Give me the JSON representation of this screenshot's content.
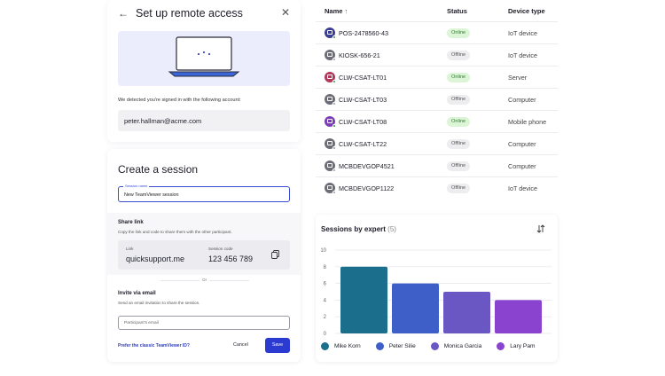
{
  "remote_access": {
    "title": "Set up remote access",
    "back_icon": "arrow-left-icon",
    "close_icon": "close-icon",
    "illustration": "laptop-illustration",
    "description": "We detected you're signed in with the following account:",
    "account": "peter.hallman@acme.com"
  },
  "session": {
    "title": "Create a session",
    "name_label": "Session name",
    "name_value": "New TeamViewer session",
    "share_heading": "Share link",
    "share_desc": "Copy the link and code to share them with the other participant.",
    "link_label": "Link",
    "link_value": "quicksupport.me",
    "code_label": "Session code",
    "code_value": "123 456 789",
    "or_text": "Or",
    "invite_heading": "Invite via email",
    "invite_desc": "Send an email invitation to share the session.",
    "email_placeholder": "Participant's email",
    "classic_link": "Prefer the classic TeamViewer ID?",
    "cancel_label": "Cancel",
    "save_label": "Save"
  },
  "devices": {
    "headers": {
      "name": "Name",
      "name_sort": "↑",
      "status": "Status",
      "type": "Device type"
    },
    "rows": [
      {
        "name": "POS-2478560-43",
        "status": "Online",
        "type": "IoT device",
        "icon_color": "#3c3f8f",
        "dot": "#2e9d3a"
      },
      {
        "name": "KIOSK-656-21",
        "status": "Offline",
        "type": "IoT device",
        "icon_color": "#6d6d78",
        "dot": "#9a9aa6"
      },
      {
        "name": "CLW-CSAT-LT01",
        "status": "Online",
        "type": "Server",
        "icon_color": "#b03a5b",
        "dot": "#2e9d3a"
      },
      {
        "name": "CLW-CSAT-LT03",
        "status": "Offline",
        "type": "Computer",
        "icon_color": "#6d6d78",
        "dot": "#9a9aa6"
      },
      {
        "name": "CLW-CSAT-LT08",
        "status": "Online",
        "type": "Mobile phone",
        "icon_color": "#7b3fb3",
        "dot": "#2e9d3a"
      },
      {
        "name": "CLW-CSAT-LT22",
        "status": "Offline",
        "type": "Computer",
        "icon_color": "#6d6d78",
        "dot": "#9a9aa6"
      },
      {
        "name": "MCBDEVGOP4521",
        "status": "Offline",
        "type": "Computer",
        "icon_color": "#6d6d78",
        "dot": "#9a9aa6"
      },
      {
        "name": "MCBDEVGOP1122",
        "status": "Offline",
        "type": "IoT device",
        "icon_color": "#6d6d78",
        "dot": "#9a9aa6"
      }
    ]
  },
  "chart_card": {
    "title": "Sessions by expert",
    "count": "(5)",
    "sort_icon": "sort-icon"
  },
  "chart_data": {
    "type": "bar",
    "title": "Sessions by expert",
    "categories": [
      "Mike Korn",
      "Peter Silie",
      "Monica Garcia",
      "Lary Pam"
    ],
    "values": [
      8,
      6,
      5,
      4
    ],
    "colors": [
      "#1b6e8c",
      "#3e5fc8",
      "#6a57c4",
      "#8a43cf"
    ],
    "yticks": [
      0,
      2,
      4,
      6,
      8,
      10
    ],
    "ylim": [
      0,
      10
    ],
    "grid": true,
    "legend": "bottom"
  }
}
